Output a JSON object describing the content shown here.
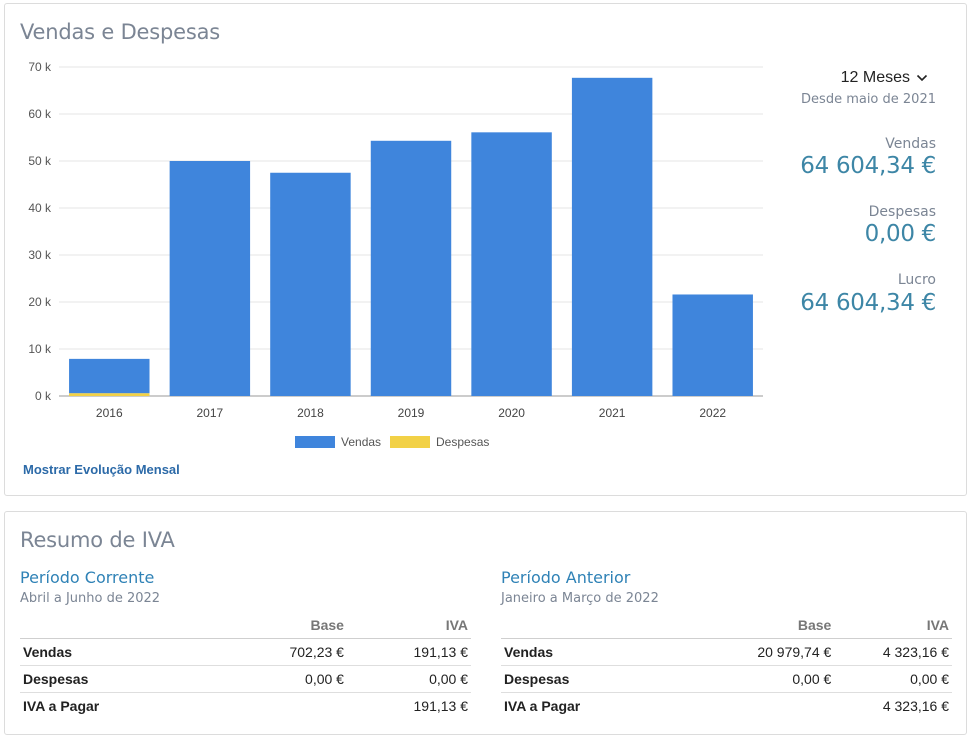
{
  "sales_panel": {
    "title": "Vendas e Despesas",
    "show_monthly_link": "Mostrar Evolução Mensal",
    "period_select": "12 Meses",
    "since": "Desde maio de 2021",
    "metrics": {
      "sales_label": "Vendas",
      "sales_value": "64 604,34 €",
      "expenses_label": "Despesas",
      "expenses_value": "0,00 €",
      "profit_label": "Lucro",
      "profit_value": "64 604,34 €"
    }
  },
  "chart_data": {
    "type": "bar",
    "stacked": true,
    "categories": [
      "2016",
      "2017",
      "2018",
      "2019",
      "2020",
      "2021",
      "2022"
    ],
    "series": [
      {
        "name": "Vendas",
        "color": "#3f85dc",
        "values": [
          7300,
          50000,
          47500,
          54300,
          56100,
          67700,
          21600
        ]
      },
      {
        "name": "Despesas",
        "color": "#f2d146",
        "values": [
          600,
          0,
          0,
          0,
          0,
          0,
          0
        ]
      }
    ],
    "ylim": [
      0,
      70000
    ],
    "yticks": [
      0,
      10000,
      20000,
      30000,
      40000,
      50000,
      60000,
      70000
    ],
    "ytick_labels": [
      "0 k",
      "10 k",
      "20 k",
      "30 k",
      "40 k",
      "50 k",
      "60 k",
      "70 k"
    ],
    "grid": true,
    "legend": "bottom"
  },
  "vat_panel": {
    "title": "Resumo de IVA",
    "current": {
      "heading": "Período Corrente",
      "subtitle": "Abril a Junho de 2022",
      "columns": [
        "Base",
        "IVA"
      ],
      "rows": [
        {
          "label": "Vendas",
          "base": "702,23 €",
          "iva": "191,13 €"
        },
        {
          "label": "Despesas",
          "base": "0,00 €",
          "iva": "0,00 €"
        },
        {
          "label": "IVA a Pagar",
          "base": "",
          "iva": "191,13 €"
        }
      ]
    },
    "previous": {
      "heading": "Período Anterior",
      "subtitle": "Janeiro a Março de 2022",
      "columns": [
        "Base",
        "IVA"
      ],
      "rows": [
        {
          "label": "Vendas",
          "base": "20 979,74 €",
          "iva": "4 323,16 €"
        },
        {
          "label": "Despesas",
          "base": "0,00 €",
          "iva": "0,00 €"
        },
        {
          "label": "IVA a Pagar",
          "base": "",
          "iva": "4 323,16 €"
        }
      ]
    }
  }
}
